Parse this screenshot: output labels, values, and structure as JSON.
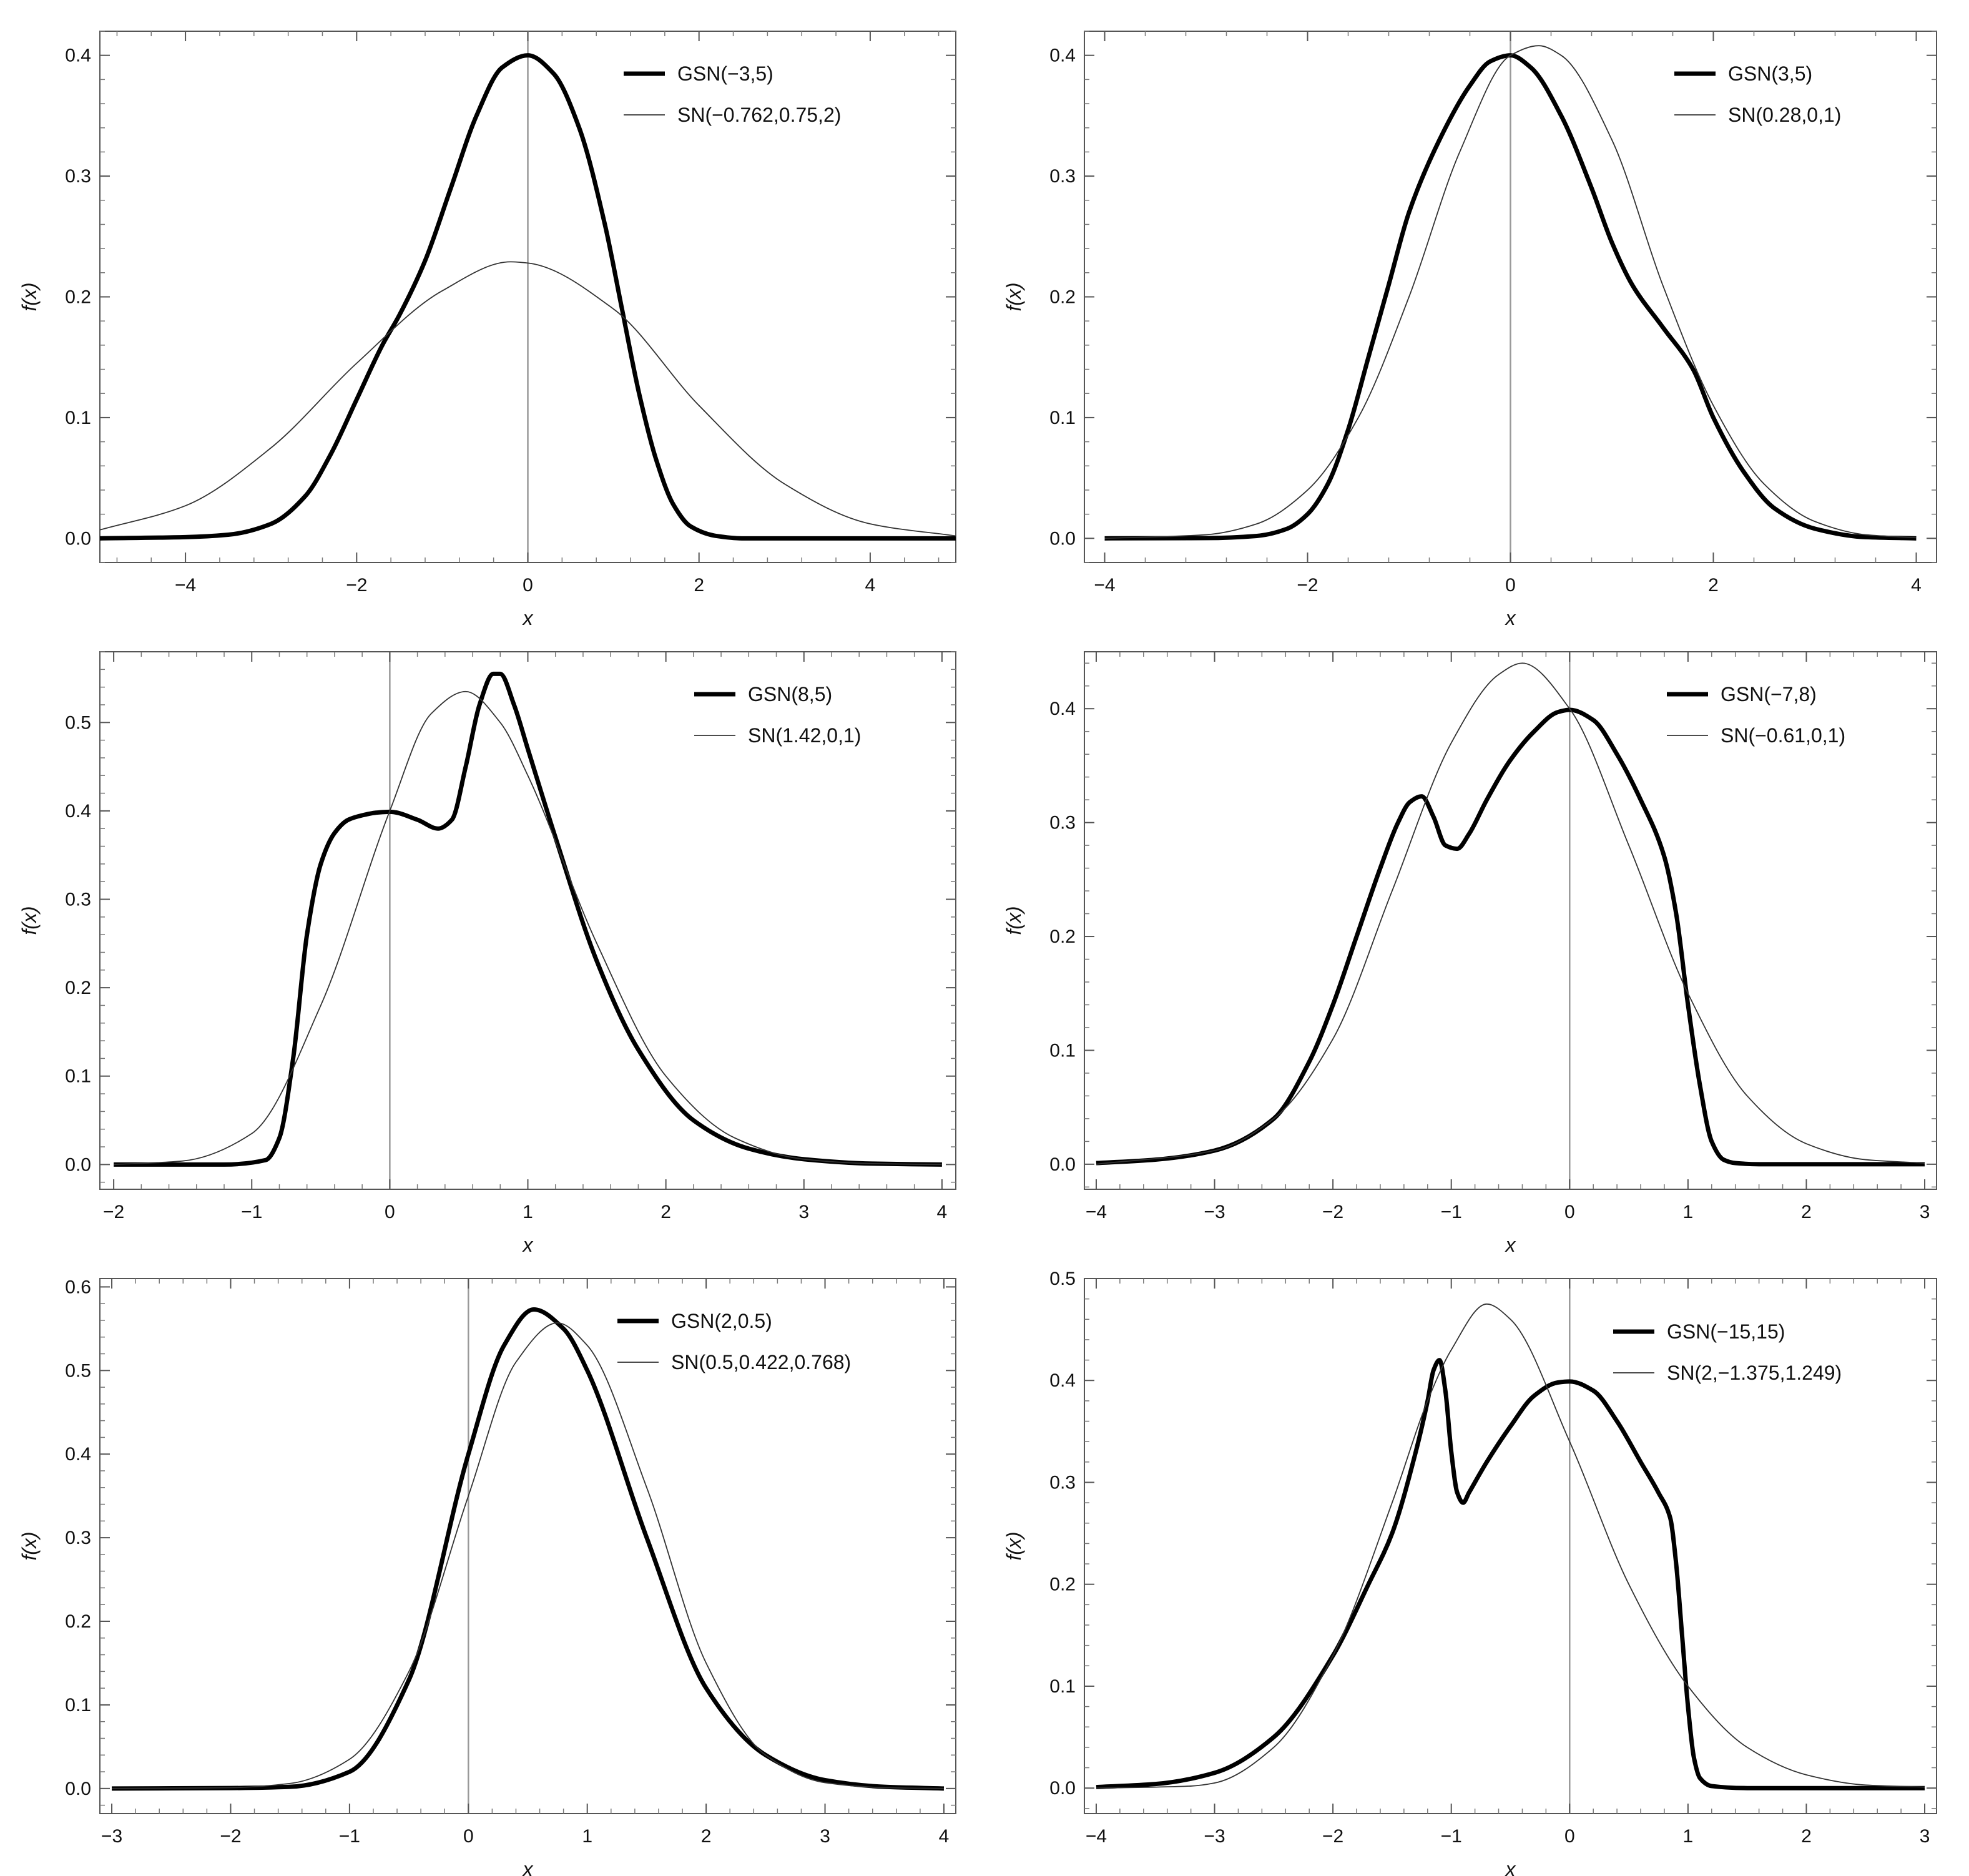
{
  "chart_data": [
    {
      "type": "line",
      "xlabel": "x",
      "ylabel": "f(x)",
      "xlim": [
        -5,
        5
      ],
      "ylim": [
        -0.02,
        0.42
      ],
      "xticks": [
        -4,
        -2,
        0,
        2,
        4
      ],
      "xtick_labels": [
        "−4",
        "−2",
        "0",
        "2",
        "4"
      ],
      "yticks": [
        0.0,
        0.1,
        0.2,
        0.3,
        0.4
      ],
      "ytick_labels": [
        "0.0",
        "0.1",
        "0.2",
        "0.3",
        "0.4"
      ],
      "series": [
        {
          "name": "GSN(−3,5)",
          "style": "thick",
          "x": [
            -5,
            -4,
            -3.5,
            -3,
            -2.6,
            -2.3,
            -2,
            -1.7,
            -1.5,
            -1.2,
            -0.9,
            -0.6,
            -0.3,
            0,
            0.3,
            0.6,
            0.9,
            1.1,
            1.3,
            1.5,
            1.7,
            1.9,
            2.2,
            2.5,
            3,
            4,
            5
          ],
          "y": [
            0,
            0.001,
            0.003,
            0.012,
            0.035,
            0.07,
            0.115,
            0.16,
            0.185,
            0.23,
            0.29,
            0.35,
            0.39,
            0.4,
            0.385,
            0.34,
            0.26,
            0.19,
            0.12,
            0.065,
            0.028,
            0.01,
            0.002,
            0,
            0,
            0,
            0
          ]
        },
        {
          "name": "SN(−0.762,0.75,2)",
          "style": "thin",
          "x": [
            -5,
            -4,
            -3,
            -2,
            -1,
            -0.2,
            0,
            1,
            2,
            3,
            4,
            5
          ],
          "y": [
            0.007,
            0.027,
            0.075,
            0.145,
            0.205,
            0.229,
            0.228,
            0.19,
            0.11,
            0.045,
            0.012,
            0.002
          ]
        }
      ]
    },
    {
      "type": "line",
      "xlabel": "x",
      "ylabel": "f(x)",
      "xlim": [
        -4.2,
        4.2
      ],
      "ylim": [
        -0.02,
        0.42
      ],
      "xticks": [
        -4,
        -2,
        0,
        2,
        4
      ],
      "xtick_labels": [
        "−4",
        "−2",
        "0",
        "2",
        "4"
      ],
      "yticks": [
        0.0,
        0.1,
        0.2,
        0.3,
        0.4
      ],
      "ytick_labels": [
        "0.0",
        "0.1",
        "0.2",
        "0.3",
        "0.4"
      ],
      "series": [
        {
          "name": "GSN(3,5)",
          "style": "thick",
          "x": [
            -4,
            -3,
            -2.5,
            -2.2,
            -2,
            -1.8,
            -1.6,
            -1.4,
            -1.2,
            -1,
            -0.7,
            -0.4,
            -0.2,
            0,
            0.2,
            0.5,
            0.8,
            1,
            1.2,
            1.5,
            1.8,
            2,
            2.3,
            2.6,
            3,
            3.5,
            4
          ],
          "y": [
            0,
            0.0002,
            0.002,
            0.008,
            0.02,
            0.045,
            0.09,
            0.15,
            0.21,
            0.27,
            0.33,
            0.375,
            0.395,
            0.4,
            0.39,
            0.35,
            0.29,
            0.245,
            0.21,
            0.175,
            0.14,
            0.1,
            0.055,
            0.025,
            0.008,
            0.001,
            0
          ]
        },
        {
          "name": "SN(0.28,0,1)",
          "style": "thin",
          "x": [
            -4,
            -3,
            -2.5,
            -2,
            -1.5,
            -1,
            -0.5,
            0,
            0.28,
            0.5,
            1,
            1.5,
            2,
            2.5,
            3,
            3.5,
            4
          ],
          "y": [
            0,
            0.003,
            0.012,
            0.04,
            0.1,
            0.2,
            0.32,
            0.4,
            0.408,
            0.4,
            0.33,
            0.21,
            0.11,
            0.045,
            0.014,
            0.003,
            0.0005
          ]
        }
      ]
    },
    {
      "type": "line",
      "xlabel": "x",
      "ylabel": "f(x)",
      "xlim": [
        -2.1,
        4.1
      ],
      "ylim": [
        -0.028,
        0.58
      ],
      "xticks": [
        -2,
        -1,
        0,
        1,
        2,
        3,
        4
      ],
      "xtick_labels": [
        "−2",
        "−1",
        "0",
        "1",
        "2",
        "3",
        "4"
      ],
      "yticks": [
        0.0,
        0.1,
        0.2,
        0.3,
        0.4,
        0.5
      ],
      "ytick_labels": [
        "0.0",
        "0.1",
        "0.2",
        "0.3",
        "0.4",
        "0.5"
      ],
      "series": [
        {
          "name": "GSN(8,5)",
          "style": "thick",
          "x": [
            -2,
            -1.2,
            -0.9,
            -0.8,
            -0.7,
            -0.6,
            -0.5,
            -0.4,
            -0.3,
            -0.2,
            -0.1,
            0,
            0.2,
            0.35,
            0.45,
            0.55,
            0.65,
            0.75,
            0.8,
            0.9,
            1,
            1.2,
            1.5,
            1.8,
            2.2,
            2.6,
            3,
            3.5,
            4
          ],
          "y": [
            0,
            0,
            0.005,
            0.03,
            0.12,
            0.26,
            0.34,
            0.375,
            0.39,
            0.395,
            0.398,
            0.399,
            0.39,
            0.38,
            0.39,
            0.45,
            0.52,
            0.555,
            0.555,
            0.52,
            0.47,
            0.37,
            0.23,
            0.13,
            0.05,
            0.018,
            0.006,
            0.001,
            0
          ]
        },
        {
          "name": "SN(1.42,0,1)",
          "style": "thin",
          "x": [
            -2,
            -1.5,
            -1,
            -0.5,
            0,
            0.3,
            0.55,
            0.8,
            1,
            1.5,
            2,
            2.5,
            3,
            3.5,
            4
          ],
          "y": [
            0,
            0.004,
            0.035,
            0.18,
            0.4,
            0.51,
            0.535,
            0.5,
            0.44,
            0.25,
            0.1,
            0.03,
            0.006,
            0.001,
            0
          ]
        }
      ]
    },
    {
      "type": "line",
      "xlabel": "x",
      "ylabel": "f(x)",
      "xlim": [
        -4.1,
        3.1
      ],
      "ylim": [
        -0.022,
        0.45
      ],
      "xticks": [
        -4,
        -3,
        -2,
        -1,
        0,
        1,
        2,
        3
      ],
      "xtick_labels": [
        "−4",
        "−3",
        "−2",
        "−1",
        "0",
        "1",
        "2",
        "3"
      ],
      "yticks": [
        0.0,
        0.1,
        0.2,
        0.3,
        0.4
      ],
      "ytick_labels": [
        "0.0",
        "0.1",
        "0.2",
        "0.3",
        "0.4"
      ],
      "series": [
        {
          "name": "GSN(−7,8)",
          "style": "thick",
          "x": [
            -4,
            -3.5,
            -3,
            -2.5,
            -2.2,
            -2,
            -1.8,
            -1.6,
            -1.45,
            -1.35,
            -1.25,
            -1.15,
            -1.05,
            -0.95,
            -0.85,
            -0.7,
            -0.5,
            -0.3,
            -0.1,
            0,
            0.2,
            0.4,
            0.6,
            0.8,
            0.9,
            1,
            1.1,
            1.2,
            1.3,
            1.4,
            1.6,
            2,
            3
          ],
          "y": [
            0.001,
            0.004,
            0.012,
            0.04,
            0.09,
            0.14,
            0.2,
            0.26,
            0.3,
            0.318,
            0.323,
            0.305,
            0.28,
            0.277,
            0.29,
            0.32,
            0.355,
            0.38,
            0.397,
            0.399,
            0.39,
            0.36,
            0.32,
            0.27,
            0.22,
            0.14,
            0.07,
            0.02,
            0.004,
            0.001,
            0,
            0,
            0
          ]
        },
        {
          "name": "SN(−0.61,0,1)",
          "style": "thin",
          "x": [
            -4,
            -3,
            -2.5,
            -2,
            -1.5,
            -1,
            -0.6,
            -0.4,
            0,
            0.5,
            1,
            1.5,
            2,
            2.5,
            3
          ],
          "y": [
            0,
            0.012,
            0.04,
            0.11,
            0.24,
            0.37,
            0.43,
            0.44,
            0.4,
            0.28,
            0.15,
            0.06,
            0.018,
            0.004,
            0.001
          ]
        }
      ]
    },
    {
      "type": "line",
      "xlabel": "x",
      "ylabel": "f(x)",
      "xlim": [
        -3.1,
        4.1
      ],
      "ylim": [
        -0.03,
        0.61
      ],
      "xticks": [
        -3,
        -2,
        -1,
        0,
        1,
        2,
        3,
        4
      ],
      "xtick_labels": [
        "−3",
        "−2",
        "−1",
        "0",
        "1",
        "2",
        "3",
        "4"
      ],
      "yticks": [
        0.0,
        0.1,
        0.2,
        0.3,
        0.4,
        0.5,
        0.6
      ],
      "ytick_labels": [
        "0.0",
        "0.1",
        "0.2",
        "0.3",
        "0.4",
        "0.5",
        "0.6"
      ],
      "series": [
        {
          "name": "GSN(2,0.5)",
          "style": "thick",
          "x": [
            -3,
            -2,
            -1.5,
            -1,
            -0.5,
            0,
            0.3,
            0.55,
            0.8,
            1,
            1.5,
            2,
            2.5,
            3,
            3.5,
            4
          ],
          "y": [
            0,
            0.0005,
            0.002,
            0.02,
            0.13,
            0.4,
            0.53,
            0.573,
            0.55,
            0.5,
            0.3,
            0.12,
            0.04,
            0.01,
            0.002,
            0
          ]
        },
        {
          "name": "SN(0.5,0.422,0.768)",
          "style": "thin",
          "x": [
            -3,
            -2,
            -1.5,
            -1,
            -0.5,
            0,
            0.4,
            0.75,
            1,
            1.5,
            2,
            2.5,
            3,
            3.5,
            4
          ],
          "y": [
            0,
            0.001,
            0.006,
            0.035,
            0.14,
            0.35,
            0.51,
            0.557,
            0.53,
            0.36,
            0.15,
            0.04,
            0.007,
            0.001,
            0
          ]
        }
      ]
    },
    {
      "type": "line",
      "xlabel": "x",
      "ylabel": "f(x)",
      "xlim": [
        -4.1,
        3.1
      ],
      "ylim": [
        -0.025,
        0.5
      ],
      "xticks": [
        -4,
        -3,
        -2,
        -1,
        0,
        1,
        2,
        3
      ],
      "xtick_labels": [
        "−4",
        "−3",
        "−2",
        "−1",
        "0",
        "1",
        "2",
        "3"
      ],
      "yticks": [
        0.0,
        0.1,
        0.2,
        0.3,
        0.4,
        0.5
      ],
      "ytick_labels": [
        "0.0",
        "0.1",
        "0.2",
        "0.3",
        "0.4",
        "0.5"
      ],
      "series": [
        {
          "name": "GSN(−15,15)",
          "style": "thick",
          "x": [
            -4,
            -3.5,
            -3,
            -2.5,
            -2,
            -1.7,
            -1.5,
            -1.3,
            -1.2,
            -1.15,
            -1.1,
            -1.05,
            -1,
            -0.95,
            -0.9,
            -0.85,
            -0.7,
            -0.5,
            -0.3,
            -0.1,
            0,
            0.2,
            0.4,
            0.6,
            0.75,
            0.85,
            0.9,
            0.95,
            1,
            1.05,
            1.1,
            1.2,
            1.5,
            2,
            3
          ],
          "y": [
            0.001,
            0.004,
            0.015,
            0.05,
            0.13,
            0.2,
            0.25,
            0.33,
            0.38,
            0.41,
            0.42,
            0.39,
            0.33,
            0.29,
            0.28,
            0.29,
            0.32,
            0.355,
            0.385,
            0.398,
            0.399,
            0.39,
            0.36,
            0.32,
            0.29,
            0.265,
            0.22,
            0.15,
            0.08,
            0.03,
            0.01,
            0.002,
            0,
            0,
            0
          ]
        },
        {
          "name": "SN(2,−1.375,1.249)",
          "style": "thin",
          "x": [
            -4,
            -3.2,
            -3,
            -2.5,
            -2,
            -1.5,
            -1.2,
            -1,
            -0.7,
            -0.5,
            0,
            0.5,
            1,
            1.5,
            2,
            2.5,
            3
          ],
          "y": [
            0,
            0.002,
            0.005,
            0.04,
            0.13,
            0.28,
            0.38,
            0.43,
            0.475,
            0.46,
            0.34,
            0.2,
            0.1,
            0.04,
            0.013,
            0.003,
            0.001
          ]
        }
      ]
    }
  ]
}
